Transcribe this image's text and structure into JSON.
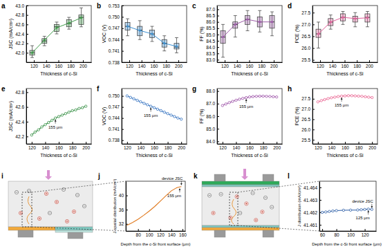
{
  "chart_data": [
    {
      "panel": "a",
      "type": "box",
      "x_label": "Thickness of c-Si",
      "y_label": "JSC (mA/cm²)",
      "color": "#3f9b4a",
      "categories": [
        "120",
        "140",
        "160",
        "180",
        "200"
      ],
      "min": [
        41.9,
        42.15,
        42.4,
        42.5,
        42.55
      ],
      "q1": [
        41.95,
        42.2,
        42.45,
        42.55,
        42.6
      ],
      "median": [
        42.0,
        42.25,
        42.55,
        42.62,
        42.75
      ],
      "q3": [
        42.05,
        42.3,
        42.6,
        42.7,
        42.8
      ],
      "max": [
        42.15,
        42.35,
        42.65,
        42.75,
        42.95
      ],
      "means": [
        42.0,
        42.27,
        42.53,
        42.63,
        42.74
      ],
      "ylim": [
        41.8,
        43.0
      ],
      "yticks": [
        {
          "value": 42,
          "label": "42.0"
        },
        42.2,
        42.4,
        42.6,
        42.8,
        {
          "value": 43,
          "label": "43.0"
        }
      ]
    },
    {
      "panel": "b",
      "type": "box",
      "x_label": "Thickness of c-Si",
      "y_label": "VOC (V)",
      "color": "#3b8fd0",
      "categories": [
        "120",
        "140",
        "160",
        "180",
        "200"
      ],
      "min": [
        0.745,
        0.744,
        0.7435,
        0.741,
        0.7405
      ],
      "q1": [
        0.7465,
        0.745,
        0.7445,
        0.742,
        0.7415
      ],
      "median": [
        0.7475,
        0.7465,
        0.7455,
        0.743,
        0.742
      ],
      "q3": [
        0.7485,
        0.7475,
        0.7465,
        0.744,
        0.743
      ],
      "max": [
        0.7495,
        0.749,
        0.7475,
        0.745,
        0.7445
      ],
      "means": [
        0.7475,
        0.7464,
        0.7455,
        0.743,
        0.7422
      ],
      "ylim": [
        0.738,
        0.753
      ],
      "yticks": [
        0.738,
        0.741,
        0.744,
        0.747,
        {
          "value": 0.75,
          "label": "0.750"
        },
        0.753
      ]
    },
    {
      "panel": "c",
      "type": "box",
      "x_label": "Thickness of c-Si",
      "y_label": "FF (%)",
      "color": "#9b5aa6",
      "categories": [
        "120",
        "140",
        "160",
        "180",
        "200"
      ],
      "min": [
        83.2,
        84.8,
        85.3,
        85.2,
        84.9
      ],
      "q1": [
        84.3,
        85.5,
        85.8,
        85.6,
        85.5
      ],
      "median": [
        84.8,
        85.8,
        86.2,
        86.0,
        86.0
      ],
      "q3": [
        85.3,
        86.0,
        86.5,
        86.4,
        86.5
      ],
      "max": [
        85.8,
        86.5,
        86.9,
        86.9,
        86.8
      ],
      "means": [
        84.8,
        85.8,
        86.2,
        86.0,
        86.0
      ],
      "ylim": [
        82.8,
        87.3
      ],
      "yticks": [
        {
          "value": 83,
          "label": "83.0"
        },
        83.5,
        {
          "value": 84,
          "label": "84.0"
        },
        84.5,
        {
          "value": 85,
          "label": "85.0"
        },
        85.5,
        {
          "value": 86,
          "label": "86.0"
        },
        86.5,
        {
          "value": 87,
          "label": "87.0"
        }
      ]
    },
    {
      "panel": "d",
      "type": "box",
      "x_label": "Thickness of c-Si",
      "y_label": "PCE (%)",
      "color": "#e0609a",
      "categories": [
        "120",
        "140",
        "160",
        "180",
        "200"
      ],
      "min": [
        26.0,
        26.8,
        27.0,
        26.9,
        26.9
      ],
      "q1": [
        26.45,
        26.95,
        27.15,
        27.1,
        27.1
      ],
      "median": [
        26.6,
        27.1,
        27.3,
        27.25,
        27.3
      ],
      "q3": [
        26.8,
        27.25,
        27.45,
        27.35,
        27.45
      ],
      "max": [
        27.1,
        27.4,
        27.55,
        27.5,
        27.55
      ],
      "means": [
        26.6,
        27.1,
        27.3,
        27.25,
        27.28
      ],
      "ylim": [
        25.4,
        27.8
      ],
      "yticks": [
        25.5,
        {
          "value": 26,
          "label": "26.0"
        },
        26.5,
        {
          "value": 27,
          "label": "27.0"
        },
        27.5
      ]
    },
    {
      "panel": "e",
      "type": "line",
      "x_label": "Thickness of c-Si",
      "y_label": "JSC (mA/cm²)",
      "color": "#2e8b3e",
      "marker": "circle",
      "x": [
        120,
        125,
        130,
        135,
        140,
        145,
        150,
        155,
        160,
        165,
        170,
        175,
        180,
        185,
        190,
        195,
        200
      ],
      "values": [
        42.22,
        42.26,
        42.29,
        42.33,
        42.36,
        42.39,
        42.42,
        42.45,
        42.47,
        42.49,
        42.51,
        42.53,
        42.55,
        42.56,
        42.58,
        42.59,
        42.61
      ],
      "xlim": [
        112,
        208
      ],
      "xticks": [
        120,
        140,
        160,
        180,
        200
      ],
      "ylim": [
        42.1,
        42.85
      ],
      "yticks": [
        42.2,
        42.4,
        42.6,
        42.8
      ],
      "annotations": [
        {
          "text": "155 μm",
          "x": 155
        }
      ]
    },
    {
      "panel": "f",
      "type": "line",
      "x_label": "Thickness of c-Si",
      "y_label": "VOC (V)",
      "color": "#2f6fbf",
      "marker": "circle",
      "x": [
        120,
        125,
        130,
        135,
        140,
        145,
        150,
        155,
        160,
        165,
        170,
        175,
        180,
        185,
        190,
        195,
        200
      ],
      "values": [
        0.75,
        0.7496,
        0.7492,
        0.7488,
        0.7484,
        0.748,
        0.7476,
        0.7472,
        0.7468,
        0.7464,
        0.746,
        0.7456,
        0.7452,
        0.7448,
        0.7444,
        0.744,
        0.7437
      ],
      "xlim": [
        112,
        208
      ],
      "xticks": [
        120,
        140,
        160,
        180,
        200
      ],
      "ylim": [
        0.737,
        0.752
      ],
      "yticks": [
        0.738,
        0.741,
        0.744,
        0.747,
        {
          "value": 0.75,
          "label": "0.750"
        }
      ],
      "annotations": [
        {
          "text": "155 μm",
          "x": 155
        }
      ]
    },
    {
      "panel": "g",
      "type": "line",
      "x_label": "Thickness of c-Si",
      "y_label": "FF (%)",
      "color": "#9b4fa6",
      "marker": "circle",
      "x": [
        120,
        125,
        130,
        135,
        140,
        145,
        150,
        155,
        160,
        165,
        170,
        175,
        180,
        185,
        190,
        195,
        200
      ],
      "values": [
        86.85,
        86.97,
        87.08,
        87.18,
        87.27,
        87.35,
        87.42,
        87.48,
        87.53,
        87.56,
        87.58,
        87.59,
        87.59,
        87.58,
        87.57,
        87.55,
        87.53
      ],
      "xlim": [
        112,
        208
      ],
      "xticks": [
        120,
        140,
        160,
        180,
        200
      ],
      "ylim": [
        83.8,
        88.2
      ],
      "yticks": [
        {
          "value": 84,
          "label": "84.0"
        },
        {
          "value": 85,
          "label": "85.0"
        },
        {
          "value": 86,
          "label": "86.0"
        },
        {
          "value": 87,
          "label": "87.0"
        },
        {
          "value": 88,
          "label": "88.0"
        }
      ],
      "annotations": [
        {
          "text": "155 μm",
          "x": 155
        }
      ]
    },
    {
      "panel": "h",
      "type": "line",
      "x_label": "Thickness of c-Si",
      "y_label": "PCE (%)",
      "color": "#e8608e",
      "marker": "circle",
      "x": [
        120,
        125,
        130,
        135,
        140,
        145,
        150,
        155,
        160,
        165,
        170,
        175,
        180,
        185,
        190,
        195,
        200
      ],
      "values": [
        27.35,
        27.41,
        27.46,
        27.51,
        27.55,
        27.58,
        27.61,
        27.63,
        27.64,
        27.65,
        27.65,
        27.64,
        27.63,
        27.62,
        27.6,
        27.58,
        27.56
      ],
      "xlim": [
        112,
        208
      ],
      "xticks": [
        120,
        140,
        160,
        180,
        200
      ],
      "ylim": [
        25.3,
        28.0
      ],
      "yticks": [
        25.5,
        {
          "value": 26,
          "label": "26.0"
        },
        26.5,
        {
          "value": 27,
          "label": "27.0"
        },
        27.5
      ],
      "annotations": [
        {
          "text": "155 μm",
          "x": 155
        }
      ]
    },
    {
      "panel": "j",
      "type": "line",
      "x_label": "Depth from the c-Si front surface (μm)",
      "y_label": "J spatial distribution (mA/cm²)",
      "color": "#e07a1f",
      "marker": "none",
      "x": [
        60,
        70,
        80,
        90,
        100,
        110,
        120,
        130,
        140,
        150,
        155,
        158
      ],
      "values": [
        31.6,
        32.4,
        33.3,
        34.4,
        35.6,
        36.9,
        38.4,
        39.9,
        41.3,
        42.2,
        42.4,
        42.5
      ],
      "xlim": [
        58,
        165
      ],
      "xticks": [
        80,
        100,
        120,
        140,
        160
      ],
      "ylim": [
        30,
        44
      ],
      "yticks": [
        32,
        36,
        40
      ],
      "annotations": [
        {
          "text": "155 μm",
          "x": 155
        },
        {
          "text": "device JSC",
          "x": 158
        }
      ]
    },
    {
      "panel": "l",
      "type": "line",
      "x_label": "Depth from the c-Si front surface (μm)",
      "y_label": "J distribution (mA/cm²)",
      "color": "#2f5fa7",
      "marker": "circle",
      "x": [
        60,
        65,
        70,
        75,
        80,
        90,
        100,
        110,
        115,
        120,
        125,
        130
      ],
      "values": [
        41.462,
        41.46203,
        41.46207,
        41.46211,
        41.46214,
        41.46217,
        41.46218,
        41.46219,
        41.46221,
        41.46223,
        41.46226,
        41.46224
      ],
      "xlim": [
        56,
        136
      ],
      "xticks": [
        60,
        80,
        100,
        120
      ],
      "ylim": [
        41.4605,
        41.4645
      ],
      "yticks": [
        41.461,
        41.462,
        41.463,
        41.464
      ],
      "annotations": [
        {
          "text": "125 μm",
          "x": 125
        },
        {
          "text": "device JSC",
          "x": 130
        }
      ]
    }
  ],
  "figure": {
    "diagram_labels": [
      "i",
      "k"
    ]
  }
}
